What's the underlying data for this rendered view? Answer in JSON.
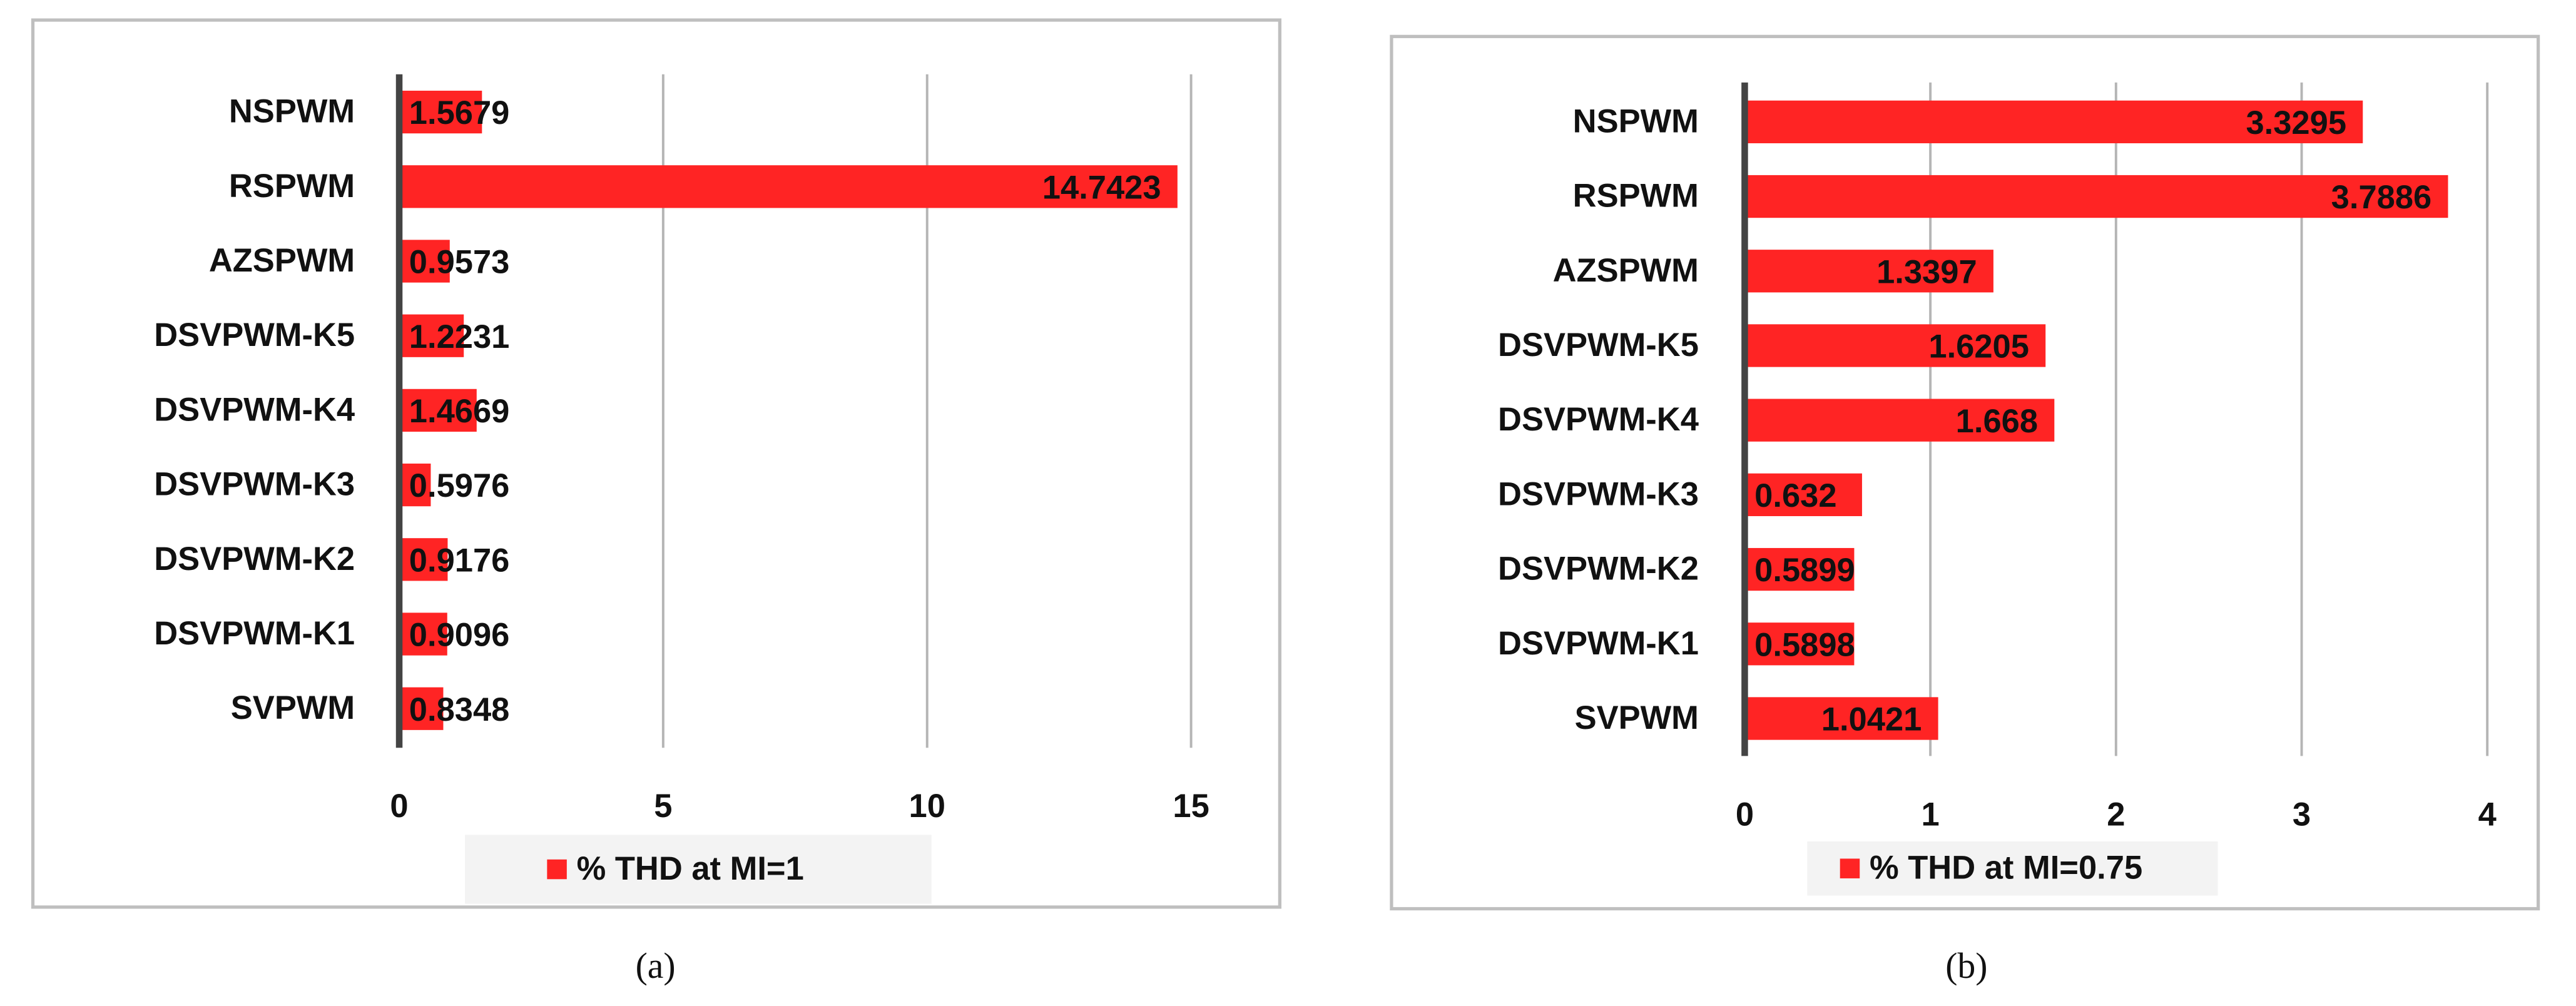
{
  "chart_data": [
    {
      "type": "bar",
      "orientation": "horizontal",
      "caption": "(a)",
      "categories": [
        "NSPWM",
        "RSPWM",
        "AZSPWM",
        "DSVPWM-K5",
        "DSVPWM-K4",
        "DSVPWM-K3",
        "DSVPWM-K2",
        "DSVPWM-K1",
        "SVPWM"
      ],
      "series": [
        {
          "name": "% THD at MI=1",
          "color": "#ff2424",
          "values": [
            1.5679,
            14.7423,
            0.9573,
            1.2231,
            1.4669,
            0.5976,
            0.9176,
            0.9096,
            0.8348
          ]
        }
      ],
      "xlim": [
        0,
        15
      ],
      "xticks": [
        0,
        5,
        10,
        15
      ],
      "grid": true,
      "legend": "bottom"
    },
    {
      "type": "bar",
      "orientation": "horizontal",
      "caption": "(b)",
      "categories": [
        "NSPWM",
        "RSPWM",
        "AZSPWM",
        "DSVPWM-K5",
        "DSVPWM-K4",
        "DSVPWM-K3",
        "DSVPWM-K2",
        "DSVPWM-K1",
        "SVPWM"
      ],
      "series": [
        {
          "name": "% THD at MI=0.75",
          "color": "#ff2424",
          "values": [
            3.3295,
            3.7886,
            1.3397,
            1.6205,
            1.668,
            0.632,
            0.5899,
            0.5898,
            1.0421
          ]
        }
      ],
      "xlim": [
        0,
        4
      ],
      "xticks": [
        0,
        1,
        2,
        3,
        4
      ],
      "grid": true,
      "legend": "bottom"
    }
  ]
}
